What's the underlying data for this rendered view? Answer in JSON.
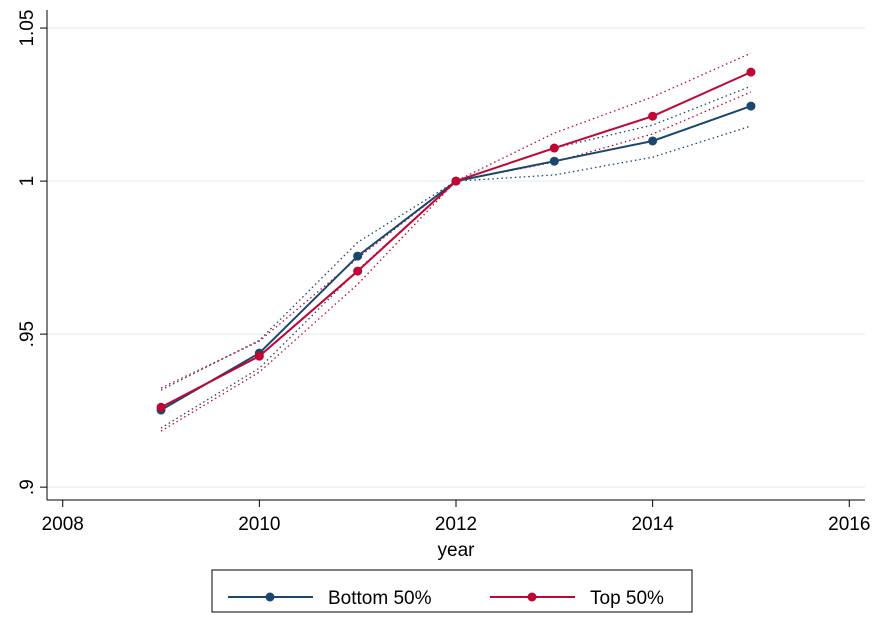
{
  "chart_data": {
    "type": "line",
    "x_label": "year",
    "x": [
      2009,
      2010,
      2011,
      2012,
      2013,
      2014,
      2015
    ],
    "xlim": [
      2007.84,
      2016.16
    ],
    "xticks": [
      2008,
      2010,
      2012,
      2014,
      2016
    ],
    "ylim": [
      0.8958,
      1.0559
    ],
    "yticks": [
      {
        "value": 0.9,
        "label": ".9"
      },
      {
        "value": 0.95,
        "label": ".95"
      },
      1,
      1.05
    ],
    "grid": true,
    "series": [
      {
        "name": "Bottom 50%",
        "color": "#1a476f",
        "values": [
          0.9252,
          0.9438,
          0.9755,
          1.0,
          1.0065,
          1.0131,
          1.0245
        ],
        "ci_upper": [
          0.9317,
          0.948,
          0.98,
          1.0,
          1.0108,
          1.0183,
          1.031
        ],
        "ci_lower": [
          0.9193,
          0.9389,
          0.9709,
          1.0,
          1.002,
          1.0078,
          1.018
        ]
      },
      {
        "name": "Top 50%",
        "color": "#c10534",
        "values": [
          0.9261,
          0.9428,
          0.9706,
          1.0,
          1.0108,
          1.0212,
          1.0356
        ],
        "ci_upper": [
          0.9324,
          0.9477,
          0.9748,
          1.0,
          1.0157,
          1.0275,
          1.0418
        ],
        "ci_lower": [
          0.9183,
          0.9376,
          0.9663,
          1.0,
          1.0062,
          1.0154,
          1.0291
        ]
      }
    ]
  }
}
